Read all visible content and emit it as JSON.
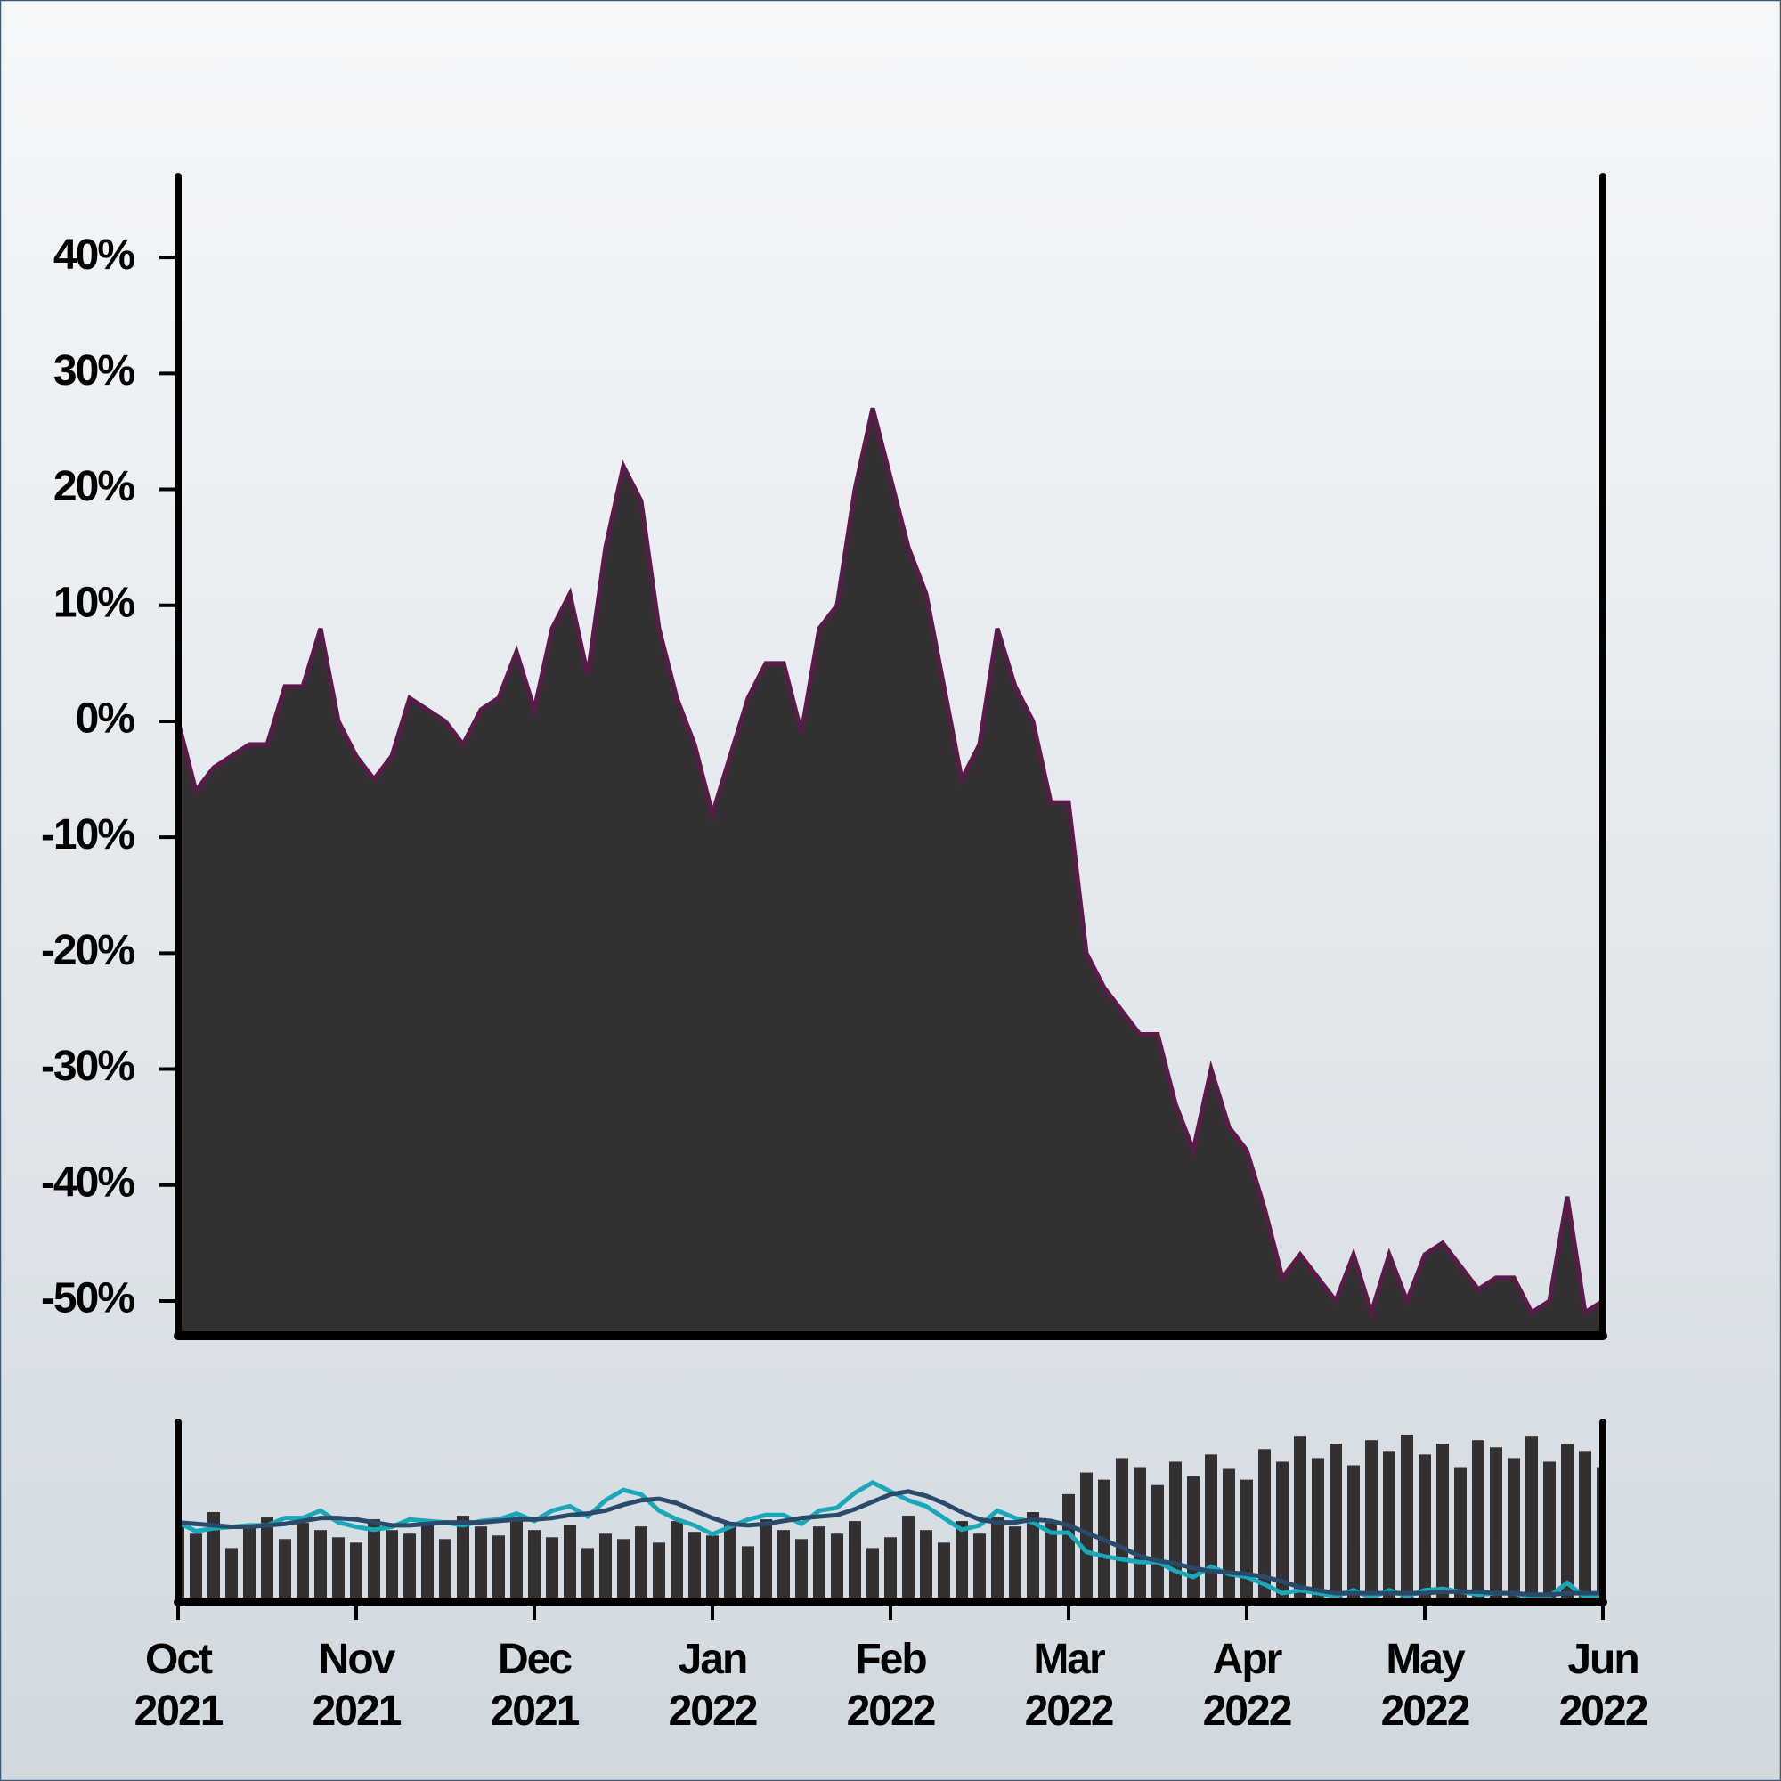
{
  "chart_data": {
    "type": "area",
    "categories": [
      "Oct 2021",
      null,
      null,
      null,
      null,
      null,
      null,
      null,
      null,
      null,
      "Nov 2021",
      null,
      null,
      null,
      null,
      null,
      null,
      null,
      null,
      null,
      "Dec 2021",
      null,
      null,
      null,
      null,
      null,
      null,
      null,
      null,
      null,
      "Jan 2022",
      null,
      null,
      null,
      null,
      null,
      null,
      null,
      null,
      null,
      "Feb 2022",
      null,
      null,
      null,
      null,
      null,
      null,
      null,
      null,
      null,
      "Mar 2022",
      null,
      null,
      null,
      null,
      null,
      null,
      null,
      null,
      null,
      "Apr 2022",
      null,
      null,
      null,
      null,
      null,
      null,
      null,
      null,
      null,
      "May 2022",
      null,
      null,
      null,
      null,
      null,
      null,
      null,
      null,
      null,
      "Jun 2022"
    ],
    "series": [
      {
        "color": "#5a1a4a",
        "fill": "#333032",
        "values": [
          0,
          -6,
          -4,
          -3,
          -2,
          -2,
          3,
          3,
          8,
          0,
          -3,
          -5,
          -3,
          2,
          1,
          0,
          -2,
          1,
          2,
          6,
          1,
          8,
          11,
          4,
          15,
          22,
          19,
          8,
          2,
          -2,
          -8,
          -3,
          2,
          5,
          5,
          -1,
          8,
          10,
          20,
          27,
          21,
          15,
          11,
          3,
          -5,
          -2,
          8,
          3,
          0,
          -7,
          -7,
          -20,
          -23,
          -25,
          -27,
          -27,
          -33,
          -37,
          -30,
          -35,
          -37,
          -42,
          -48,
          -46,
          -48,
          -50,
          -46,
          -51,
          -46,
          -50,
          -46,
          -45,
          -47,
          -49,
          -48,
          -48,
          -51,
          -50,
          -41,
          -51,
          -50
        ]
      }
    ],
    "ylim": [
      -53,
      47
    ],
    "yticks": [
      {
        "value": -50,
        "label": "-50%"
      },
      {
        "value": -40,
        "label": "-40%"
      },
      {
        "value": -30,
        "label": "-30%"
      },
      {
        "value": -20,
        "label": "-20%"
      },
      {
        "value": -10,
        "label": "-10%"
      },
      {
        "value": 0,
        "label": "0%"
      },
      {
        "value": 10,
        "label": "10%"
      },
      {
        "value": 20,
        "label": "20%"
      },
      {
        "value": 30,
        "label": "30%"
      },
      {
        "value": 40,
        "label": "40%"
      }
    ],
    "navigator": {
      "ylim": [
        -54,
        68
      ],
      "line_color": "#1aa8b8",
      "smoothed": {
        "color": "#2a4a6a",
        "values": [
          0,
          -1,
          -2,
          -3,
          -3,
          -2,
          -1,
          1,
          3,
          3,
          2,
          0,
          -2,
          -2,
          -1,
          0,
          0,
          0,
          1,
          2,
          2,
          3,
          5,
          6,
          8,
          12,
          15,
          16,
          13,
          8,
          3,
          -1,
          -2,
          -1,
          1,
          3,
          4,
          5,
          9,
          14,
          19,
          21,
          18,
          13,
          7,
          2,
          0,
          0,
          2,
          1,
          -2,
          -7,
          -12,
          -17,
          -23,
          -26,
          -28,
          -31,
          -33,
          -34,
          -35,
          -37,
          -40,
          -44,
          -46,
          -48,
          -48,
          -48,
          -48,
          -48,
          -48,
          -47,
          -47,
          -47,
          -48,
          -48,
          -49,
          -49,
          -48,
          -48,
          -48
        ]
      },
      "volume": {
        "color": "#333032",
        "ylim": [
          0,
          100
        ],
        "values": [
          45,
          38,
          50,
          30,
          42,
          47,
          35,
          44,
          40,
          36,
          33,
          46,
          40,
          38,
          44,
          35,
          48,
          42,
          37,
          45,
          40,
          36,
          43,
          30,
          38,
          35,
          42,
          33,
          45,
          39,
          37,
          44,
          31,
          46,
          40,
          35,
          42,
          38,
          45,
          30,
          36,
          48,
          40,
          33,
          45,
          38,
          47,
          42,
          50,
          44,
          60,
          72,
          68,
          80,
          75,
          65,
          78,
          70,
          82,
          74,
          68,
          85,
          78,
          92,
          80,
          88,
          76,
          90,
          84,
          93,
          82,
          88,
          75,
          90,
          86,
          80,
          92,
          78,
          88,
          84,
          75
        ]
      }
    }
  }
}
